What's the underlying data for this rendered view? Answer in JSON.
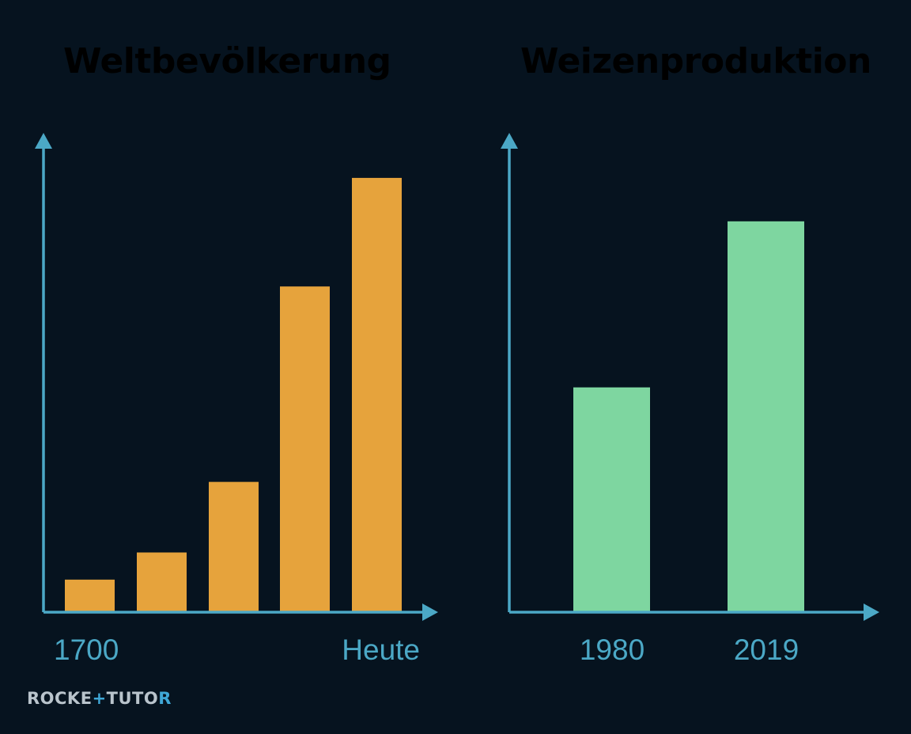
{
  "colors": {
    "background": "#06131f",
    "axis": "#4ba8c6",
    "population": "#e6a33c",
    "wheat": "#7ed6a0",
    "tick_label": "#4ba8c6",
    "logo": "#b9c4cc"
  },
  "chart_data": [
    {
      "type": "bar",
      "title": "Weltbevölkerung",
      "xlabel": "",
      "ylabel": "",
      "categories": [
        "1700",
        "",
        "",
        "",
        "Heute"
      ],
      "values": [
        0.6,
        1.1,
        2.4,
        6.0,
        8.0
      ],
      "ylim": [
        0,
        8.8
      ],
      "grid": false,
      "color": "#e6a33c"
    },
    {
      "type": "bar",
      "title": "Weizenproduktion",
      "xlabel": "",
      "ylabel": "",
      "categories": [
        "1980",
        "2019"
      ],
      "values": [
        440,
        765
      ],
      "ylim": [
        0,
        935
      ],
      "grid": false,
      "color": "#7ed6a0"
    }
  ],
  "logo": {
    "part1": "ROCKE",
    "mark": "+",
    "part2": "TUTO",
    "end": "R"
  }
}
